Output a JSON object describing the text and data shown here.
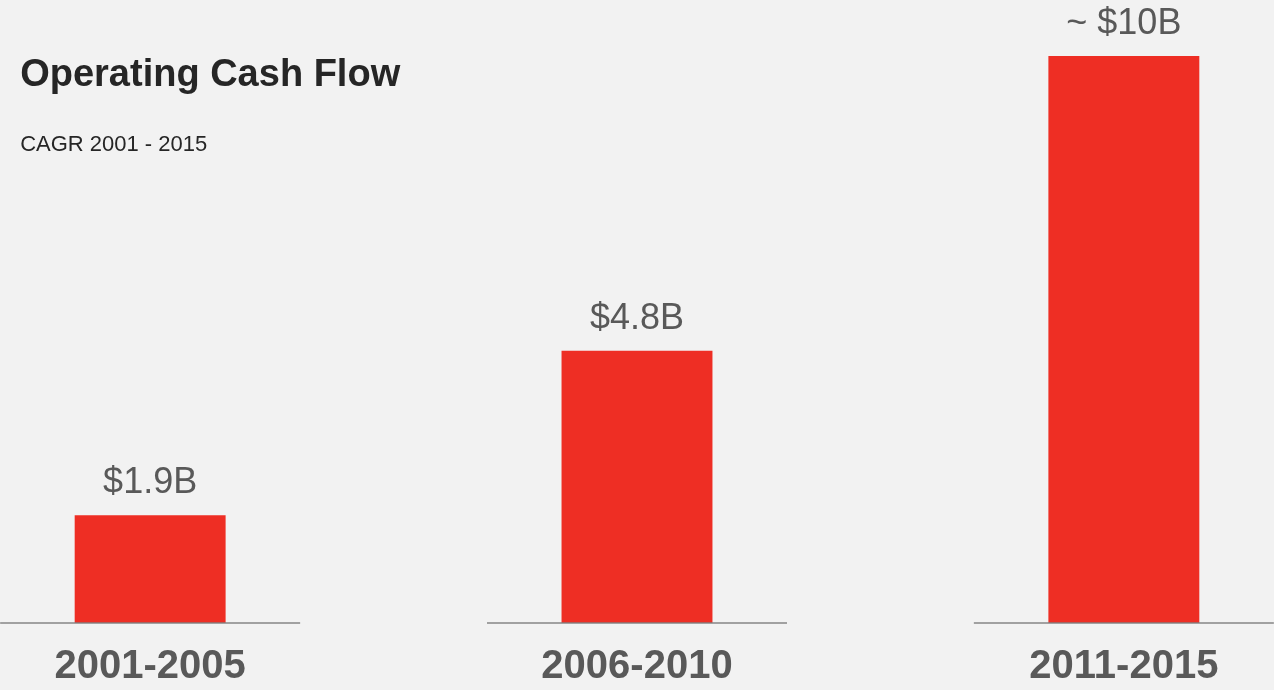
{
  "chart_data": {
    "type": "bar",
    "title": "Operating Cash Flow",
    "subtitle": "CAGR 2001 - 2015",
    "categories": [
      "2001-2005",
      "2006-2010",
      "2011-2015"
    ],
    "values": [
      1.9,
      4.8,
      10
    ],
    "value_labels": [
      "$1.9B",
      "$4.8B",
      "~ $10B"
    ],
    "color": "#ee2e24"
  }
}
